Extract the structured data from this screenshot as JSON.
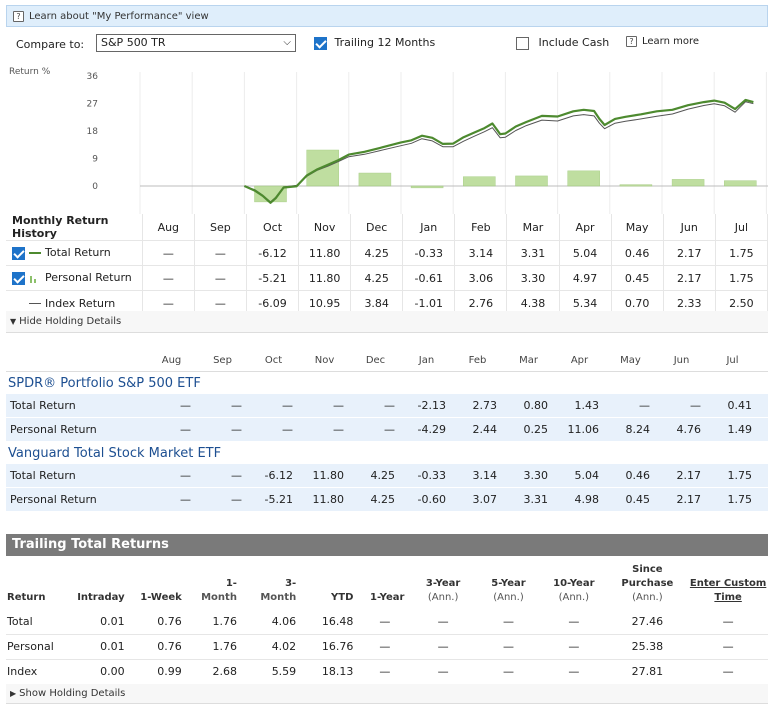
{
  "learn_bar": {
    "icon": "help-icon",
    "text": "Learn about \"My Performance\" view"
  },
  "compare": {
    "label": "Compare to:",
    "selected": "S&P 500 TR",
    "trailing_label": "Trailing 12 Months",
    "trailing_checked": true,
    "include_cash_label": "Include Cash",
    "include_cash_checked": false,
    "learn_more": "Learn more"
  },
  "chart_data": {
    "type": "line",
    "ylabel": "Return %",
    "yticks": [
      "36",
      "27",
      "18",
      "9",
      "0"
    ],
    "ylim": [
      -4,
      37
    ],
    "months": [
      "Aug",
      "Sep",
      "Oct",
      "Nov",
      "Dec",
      "Jan",
      "Feb",
      "Mar",
      "Apr",
      "May",
      "Jun",
      "Jul"
    ],
    "monthly_bars": [
      null,
      null,
      -5.21,
      11.8,
      4.25,
      -0.61,
      3.06,
      3.3,
      4.97,
      0.45,
      2.17,
      1.75
    ],
    "series": [
      {
        "name": "Total Return",
        "color": "#4d8a2f",
        "points": [
          [
            2.0,
            0
          ],
          [
            2.2,
            -1.5
          ],
          [
            2.35,
            -3.2
          ],
          [
            2.5,
            -5.5
          ],
          [
            2.6,
            -4
          ],
          [
            2.75,
            -0.5
          ],
          [
            3.0,
            -0.1
          ],
          [
            3.2,
            3.5
          ],
          [
            3.4,
            5.5
          ],
          [
            3.6,
            7
          ],
          [
            3.8,
            8.5
          ],
          [
            4.0,
            10.3
          ],
          [
            4.3,
            11.2
          ],
          [
            4.6,
            12.5
          ],
          [
            5.0,
            14.3
          ],
          [
            5.2,
            15.0
          ],
          [
            5.4,
            16.5
          ],
          [
            5.6,
            15.8
          ],
          [
            5.8,
            13.8
          ],
          [
            6.0,
            13.9
          ],
          [
            6.2,
            16
          ],
          [
            6.4,
            17.5
          ],
          [
            6.6,
            19
          ],
          [
            6.75,
            20.5
          ],
          [
            6.9,
            17.0
          ],
          [
            7.0,
            17.2
          ],
          [
            7.2,
            19.5
          ],
          [
            7.4,
            21
          ],
          [
            7.7,
            23
          ],
          [
            8.0,
            22.8
          ],
          [
            8.3,
            24.5
          ],
          [
            8.5,
            25
          ],
          [
            8.7,
            24.6
          ],
          [
            8.8,
            22
          ],
          [
            8.9,
            20
          ],
          [
            9.1,
            22
          ],
          [
            9.3,
            22.7
          ],
          [
            9.6,
            23.5
          ],
          [
            9.9,
            24.5
          ],
          [
            10.2,
            25
          ],
          [
            10.5,
            26.5
          ],
          [
            10.8,
            27.5
          ],
          [
            11.0,
            28
          ],
          [
            11.2,
            27.3
          ],
          [
            11.4,
            25.2
          ],
          [
            11.6,
            28.2
          ],
          [
            11.75,
            27.5
          ]
        ]
      },
      {
        "name": "Index Return",
        "color": "#555555",
        "points": [
          [
            2.0,
            0
          ],
          [
            2.2,
            -1.2
          ],
          [
            2.35,
            -3.0
          ],
          [
            2.5,
            -5.2
          ],
          [
            2.6,
            -3.7
          ],
          [
            2.75,
            -0.3
          ],
          [
            3.0,
            0.2
          ],
          [
            3.2,
            3.2
          ],
          [
            3.4,
            5.2
          ],
          [
            3.6,
            6.5
          ],
          [
            3.8,
            8.0
          ],
          [
            4.0,
            9.6
          ],
          [
            4.3,
            10.4
          ],
          [
            4.6,
            11.6
          ],
          [
            5.0,
            13.2
          ],
          [
            5.2,
            14.0
          ],
          [
            5.4,
            15.5
          ],
          [
            5.6,
            14.8
          ],
          [
            5.8,
            12.9
          ],
          [
            6.0,
            12.9
          ],
          [
            6.2,
            14.7
          ],
          [
            6.4,
            16.3
          ],
          [
            6.6,
            17.8
          ],
          [
            6.75,
            19.1
          ],
          [
            6.9,
            15.8
          ],
          [
            7.0,
            16.0
          ],
          [
            7.2,
            18.2
          ],
          [
            7.4,
            19.8
          ],
          [
            7.7,
            21.6
          ],
          [
            8.0,
            21.3
          ],
          [
            8.3,
            23.0
          ],
          [
            8.5,
            23.4
          ],
          [
            8.7,
            23.0
          ],
          [
            8.8,
            20.6
          ],
          [
            8.9,
            18.8
          ],
          [
            9.1,
            20.6
          ],
          [
            9.3,
            21.2
          ],
          [
            9.6,
            22.0
          ],
          [
            9.9,
            22.9
          ],
          [
            10.2,
            23.6
          ],
          [
            10.5,
            25.2
          ],
          [
            10.8,
            26.4
          ],
          [
            11.0,
            27.0
          ],
          [
            11.2,
            26.3
          ],
          [
            11.4,
            24.2
          ],
          [
            11.6,
            27.6
          ],
          [
            11.75,
            27.0
          ]
        ]
      }
    ]
  },
  "monthly": {
    "title": "Monthly Return History",
    "months": [
      "Aug",
      "Sep",
      "Oct",
      "Nov",
      "Dec",
      "Jan",
      "Feb",
      "Mar",
      "Apr",
      "May",
      "Jun",
      "Jul"
    ],
    "rows": [
      {
        "label": "Total Return",
        "checked": true,
        "marker": "line",
        "values": [
          "—",
          "—",
          "-6.12",
          "11.80",
          "4.25",
          "-0.33",
          "3.14",
          "3.31",
          "5.04",
          "0.46",
          "2.17",
          "1.75"
        ]
      },
      {
        "label": "Personal Return",
        "checked": true,
        "marker": "bars",
        "values": [
          "—",
          "—",
          "-5.21",
          "11.80",
          "4.25",
          "-0.61",
          "3.06",
          "3.30",
          "4.97",
          "0.45",
          "2.17",
          "1.75"
        ]
      },
      {
        "label": "Index Return",
        "checked": false,
        "marker": "thin-line",
        "values": [
          "—",
          "—",
          "-6.09",
          "10.95",
          "3.84",
          "-1.01",
          "2.76",
          "4.38",
          "5.34",
          "0.70",
          "2.33",
          "2.50"
        ]
      }
    ]
  },
  "hide_holding": "Hide Holding Details",
  "holdings": {
    "months": [
      "Aug",
      "Sep",
      "Oct",
      "Nov",
      "Dec",
      "Jan",
      "Feb",
      "Mar",
      "Apr",
      "May",
      "Jun",
      "Jul"
    ],
    "funds": [
      {
        "name": "SPDR® Portfolio S&P 500 ETF",
        "rows": [
          {
            "label": "Total Return",
            "values": [
              "—",
              "—",
              "—",
              "—",
              "—",
              "-2.13",
              "2.73",
              "0.80",
              "1.43",
              "—",
              "—",
              "0.41"
            ]
          },
          {
            "label": "Personal Return",
            "values": [
              "—",
              "—",
              "—",
              "—",
              "—",
              "-4.29",
              "2.44",
              "0.25",
              "11.06",
              "8.24",
              "4.76",
              "1.49"
            ]
          }
        ]
      },
      {
        "name": "Vanguard Total Stock Market ETF",
        "rows": [
          {
            "label": "Total Return",
            "values": [
              "—",
              "—",
              "-6.12",
              "11.80",
              "4.25",
              "-0.33",
              "3.14",
              "3.30",
              "5.04",
              "0.46",
              "2.17",
              "1.75"
            ]
          },
          {
            "label": "Personal Return",
            "values": [
              "—",
              "—",
              "-5.21",
              "11.80",
              "4.25",
              "-0.60",
              "3.07",
              "3.31",
              "4.98",
              "0.45",
              "2.17",
              "1.75"
            ]
          }
        ]
      }
    ]
  },
  "trailing": {
    "title": "Trailing Total Returns",
    "headers": [
      {
        "l1": "Return",
        "l2": ""
      },
      {
        "l1": "Intraday",
        "l2": ""
      },
      {
        "l1": "1-Week",
        "l2": ""
      },
      {
        "l1": "1-",
        "l2": "Month"
      },
      {
        "l1": "3-",
        "l2": "Month"
      },
      {
        "l1": "YTD",
        "l2": ""
      },
      {
        "l1": "1-Year",
        "l2": ""
      },
      {
        "l1": "3-Year",
        "l2": "(Ann.)"
      },
      {
        "l1": "5-Year",
        "l2": "(Ann.)"
      },
      {
        "l1": "10-Year",
        "l2": "(Ann.)"
      },
      {
        "l1": "Since Purchase",
        "l2": "(Ann.)"
      },
      {
        "l1": "Enter Custom Time",
        "l2": ""
      }
    ],
    "rows": [
      {
        "label": "Total",
        "values": [
          "0.01",
          "0.76",
          "1.76",
          "4.06",
          "16.48",
          "—",
          "—",
          "—",
          "—",
          "27.46",
          "—"
        ]
      },
      {
        "label": "Personal",
        "values": [
          "0.01",
          "0.76",
          "1.76",
          "4.02",
          "16.76",
          "—",
          "—",
          "—",
          "—",
          "25.38",
          "—"
        ]
      },
      {
        "label": "Index",
        "values": [
          "0.00",
          "0.99",
          "2.68",
          "5.59",
          "18.13",
          "—",
          "—",
          "—",
          "—",
          "27.81",
          "—"
        ]
      }
    ]
  },
  "show_holding": "Show Holding Details"
}
